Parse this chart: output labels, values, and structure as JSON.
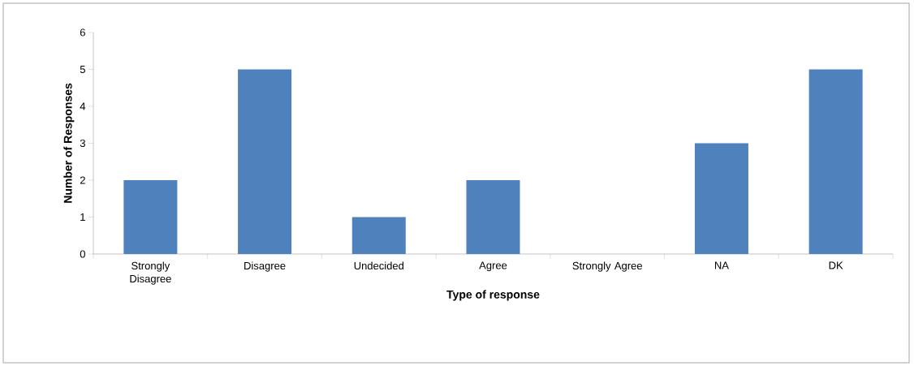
{
  "chart_data": {
    "type": "bar",
    "xlabel": "Type of response",
    "ylabel": "Number of Responses",
    "categories": [
      "Strongly Disagree",
      "Disagree",
      "Undecided",
      "Agree",
      "Strongly Agree",
      "NA",
      "DK"
    ],
    "values": [
      2,
      5,
      1,
      2,
      0,
      3,
      5
    ],
    "color": "#4f81bd",
    "ylim": [
      0,
      6
    ],
    "yticks": [
      0,
      1,
      2,
      3,
      4,
      5,
      6
    ]
  }
}
